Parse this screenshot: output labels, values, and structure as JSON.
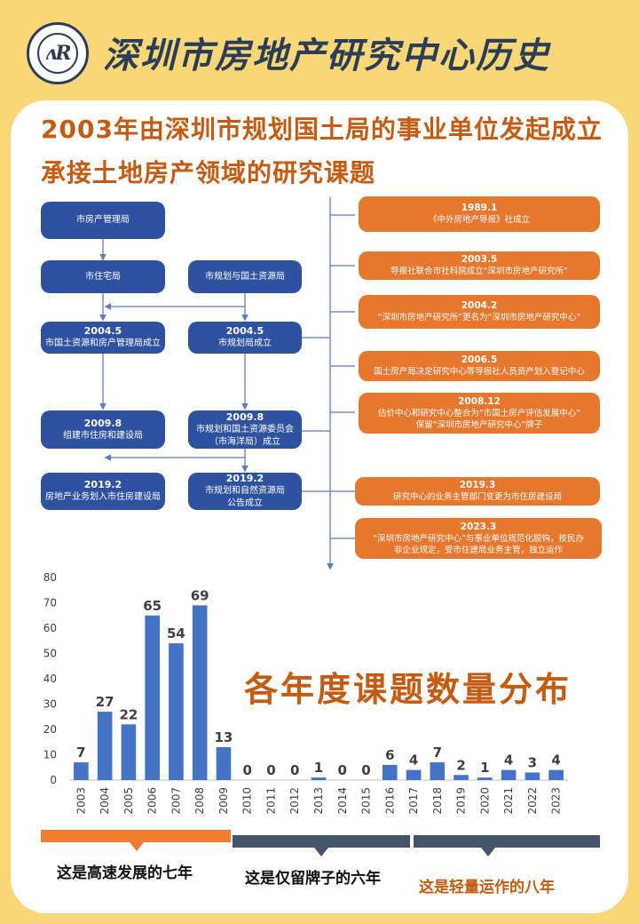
{
  "header": {
    "title": "深圳市房地产研究中心历史",
    "logo_icon": "circular-seal-logo",
    "logo_mark": "ʌR"
  },
  "subtitles": [
    "2003年由深圳市规划国土局的事业单位发起成立",
    "承接土地房产领域的研究课题"
  ],
  "org_chart": {
    "nodes": [
      {
        "id": "n1",
        "date": "",
        "text": "市房产管理局"
      },
      {
        "id": "n2",
        "date": "",
        "text": "市住宅局"
      },
      {
        "id": "n3",
        "date": "",
        "text": "市规划与国土资源局"
      },
      {
        "id": "n4",
        "date": "2004.5",
        "text": "市国土资源和房产管理局成立"
      },
      {
        "id": "n5",
        "date": "2004.5",
        "text": "市规划局成立"
      },
      {
        "id": "n6",
        "date": "2009.8",
        "text": "组建市住房和建设局"
      },
      {
        "id": "n7",
        "date": "2009.8",
        "text": "市规划和国土资源委员会\n（市海洋局）成立"
      },
      {
        "id": "n8",
        "date": "2019.2",
        "text": "房地产业务划入市住房建设局"
      },
      {
        "id": "n9",
        "date": "2019.2",
        "text": "市规划和自然资源局\n公告成立"
      }
    ],
    "colors": {
      "node": "#2f52a0",
      "line": "#5b7ec2"
    }
  },
  "timeline": {
    "events": [
      {
        "date": "1989.1",
        "text": "《中外房地产导报》社成立"
      },
      {
        "date": "2003.5",
        "text": "导报社联合市社科院成立“深圳市房地产研究所”"
      },
      {
        "date": "2004.2",
        "text": "“深圳市房地产研究所”更名为“深圳市房地产研究中心”"
      },
      {
        "date": "2006.5",
        "text": "国土房产局决定研究中心等导报社人员资产划入登记中心"
      },
      {
        "date": "2008.12",
        "text": "估价中心和研究中心整合为“市国土房产评估发展中心”\n保留“深圳市房地产研究中心”牌子"
      },
      {
        "date": "2019.3",
        "text": "研究中心的业务主管部门变更为市住房建设局"
      },
      {
        "date": "2023.3",
        "text": "“深圳市房地产研究中心”与事业单位规范化脱钩，按民办\n非企业规定，受市住建局业务主管，独立运作"
      }
    ],
    "color": "#e8772e"
  },
  "chart_data": {
    "type": "bar",
    "title": "各年度课题数量分布",
    "categories": [
      "2003",
      "2004",
      "2005",
      "2006",
      "2007",
      "2008",
      "2009",
      "2010",
      "2011",
      "2012",
      "2013",
      "2014",
      "2015",
      "2016",
      "2017",
      "2018",
      "2019",
      "2020",
      "2021",
      "2022",
      "2023"
    ],
    "values": [
      7,
      27,
      22,
      65,
      54,
      69,
      13,
      0,
      0,
      0,
      1,
      0,
      0,
      6,
      4,
      7,
      2,
      1,
      4,
      3,
      4
    ],
    "ylim": [
      0,
      80
    ],
    "yticks": [
      0,
      10,
      20,
      30,
      40,
      50,
      60,
      70,
      80
    ],
    "grid": false,
    "xlabel": "",
    "ylabel": "",
    "bar_color": "#4472c4"
  },
  "periods": [
    {
      "label": "这是高速发展的七年",
      "color": "#ed7d31",
      "label_color": "#111111"
    },
    {
      "label": "这是仅留牌子的六年",
      "color": "#44546a",
      "label_color": "#111111"
    },
    {
      "label": "这是轻量运作的八年",
      "color": "#44546a",
      "label_color": "#c55a11"
    }
  ]
}
